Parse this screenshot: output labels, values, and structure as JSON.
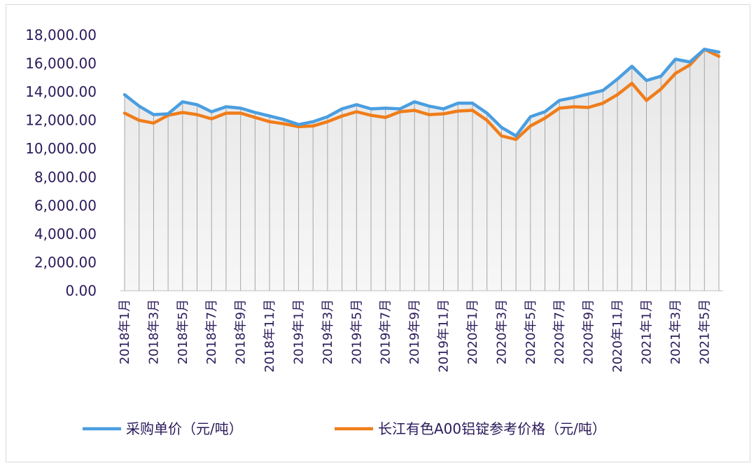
{
  "chart_data": {
    "type": "area",
    "title": "",
    "xlabel": "",
    "ylabel": "",
    "ylim": [
      0,
      18000
    ],
    "yticks": [
      "0.00",
      "2,000.00",
      "4,000.00",
      "6,000.00",
      "8,000.00",
      "10,000.00",
      "12,000.00",
      "14,000.00",
      "16,000.00",
      "18,000.00"
    ],
    "grid": false,
    "legend_position": "bottom",
    "categories": [
      "2018年1月",
      "2018年2月",
      "2018年3月",
      "2018年4月",
      "2018年5月",
      "2018年6月",
      "2018年7月",
      "2018年8月",
      "2018年9月",
      "2018年10月",
      "2018年11月",
      "2018年12月",
      "2019年1月",
      "2019年2月",
      "2019年3月",
      "2019年4月",
      "2019年5月",
      "2019年6月",
      "2019年7月",
      "2019年8月",
      "2019年9月",
      "2019年10月",
      "2019年11月",
      "2019年12月",
      "2020年1月",
      "2020年2月",
      "2020年3月",
      "2020年4月",
      "2020年5月",
      "2020年6月",
      "2020年7月",
      "2020年8月",
      "2020年9月",
      "2020年10月",
      "2020年11月",
      "2020年12月",
      "2021年1月",
      "2021年2月",
      "2021年3月",
      "2021年4月",
      "2021年5月",
      "2021年6月"
    ],
    "tick_labels": [
      "2018年1月",
      "2018年3月",
      "2018年5月",
      "2018年7月",
      "2018年9月",
      "2018年11月",
      "2019年1月",
      "2019年3月",
      "2019年5月",
      "2019年7月",
      "2019年9月",
      "2019年11月",
      "2020年1月",
      "2020年3月",
      "2020年5月",
      "2020年7月",
      "2020年9月",
      "2020年11月",
      "2021年1月",
      "2021年3月",
      "2021年5月"
    ],
    "series": [
      {
        "name": "采购单价（元/吨）",
        "color": "#4a9ee0",
        "values": [
          13800,
          13000,
          12400,
          12450,
          13300,
          13100,
          12600,
          12950,
          12850,
          12550,
          12300,
          12050,
          11700,
          11900,
          12250,
          12800,
          13100,
          12800,
          12850,
          12800,
          13300,
          13000,
          12800,
          13200,
          13200,
          12500,
          11500,
          10900,
          12250,
          12600,
          13400,
          13600,
          13850,
          14100,
          14900,
          15800,
          14800,
          15100,
          16300,
          16100,
          17000,
          16800
        ]
      },
      {
        "name": "长江有色A00铝锭参考价格（元/吨）",
        "color": "#f07d1a",
        "values": [
          12500,
          12000,
          11800,
          12350,
          12550,
          12400,
          12100,
          12500,
          12500,
          12200,
          11900,
          11750,
          11550,
          11600,
          11900,
          12300,
          12600,
          12350,
          12200,
          12600,
          12700,
          12400,
          12450,
          12650,
          12700,
          12000,
          10900,
          10650,
          11600,
          12150,
          12850,
          12950,
          12900,
          13200,
          13800,
          14600,
          13400,
          14200,
          15300,
          15900,
          17000,
          16500
        ]
      }
    ]
  }
}
